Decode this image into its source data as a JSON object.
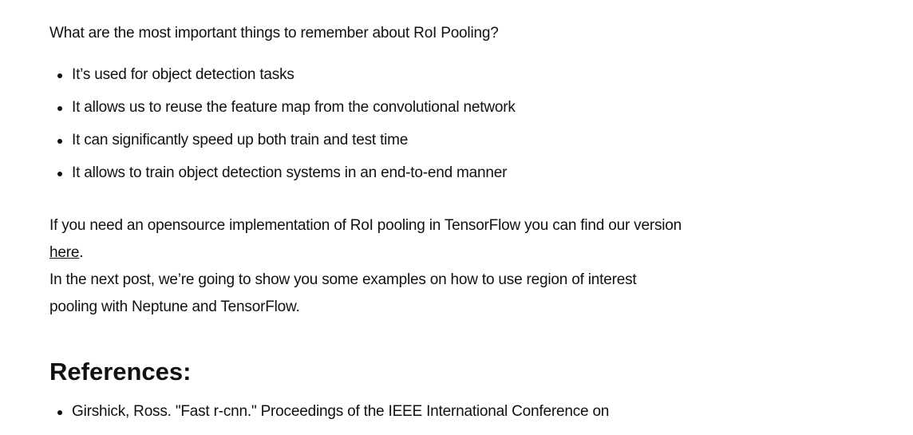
{
  "article": {
    "question": "What are the most important things to remember about RoI Pooling?",
    "bullets": [
      "It’s used for object detection tasks",
      "It allows us to reuse the feature map from the convolutional network",
      "It can significantly speed up both train and test time",
      "It allows to train object detection systems in an end-to-end manner"
    ],
    "para1_before_link": "If you need an opensource implementation of RoI pooling in TensorFlow you can find our version ",
    "para1_link": "here",
    "para1_after_link": ".",
    "para2": "In the next post, we’re going to show you some examples on how to use region of interest pooling with Neptune and TensorFlow."
  },
  "references": {
    "heading": "References:",
    "items": [
      "Girshick, Ross. \"Fast r-cnn.\" Proceedings of the IEEE International Conference on"
    ]
  }
}
